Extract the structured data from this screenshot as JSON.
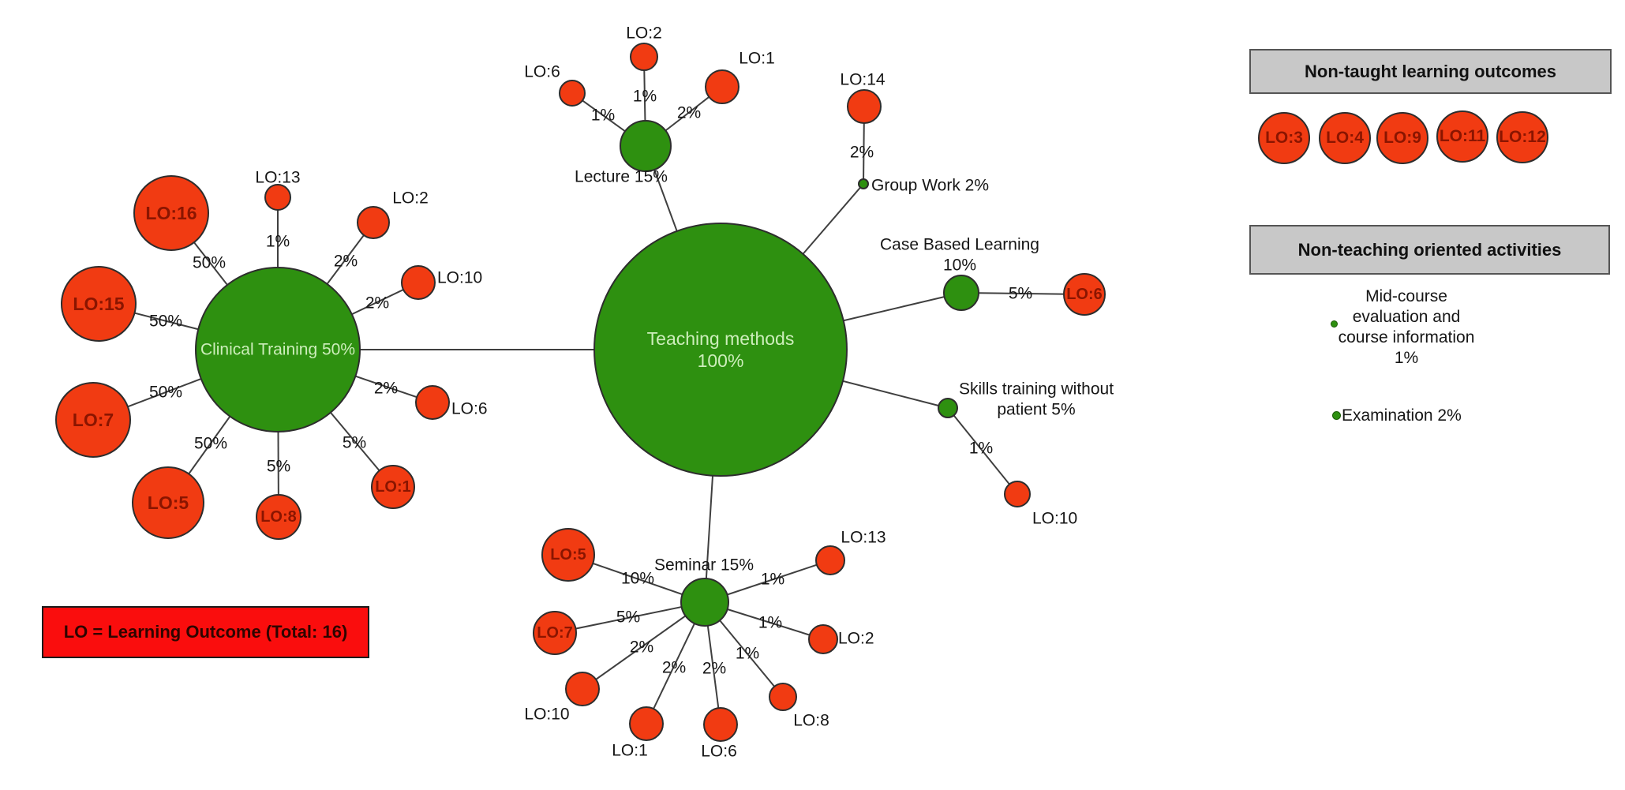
{
  "colors": {
    "activity_green": "#2e9010",
    "outcome_red": "#f13b12",
    "edge_line": "#3f3f3f",
    "hub_text_light": "#cdeebb",
    "outcome_text_dark": "#8a1500",
    "legend_header_bg": "#c8c8c8",
    "note_bg": "#fa0d0d",
    "note_text": "#2e0500"
  },
  "note_box": {
    "label": "LO = Learning Outcome (Total: 16)"
  },
  "legend_non_taught": {
    "title": "Non-taught learning outcomes",
    "items": [
      "LO:3",
      "LO:4",
      "LO:9",
      "LO:11",
      "LO:12"
    ]
  },
  "legend_non_teaching": {
    "title": "Non-teaching oriented activities",
    "item_mid_course": {
      "lines": [
        "Mid-course",
        "evaluation and",
        "course information",
        "1%"
      ]
    },
    "item_examination": {
      "label": "Examination 2%"
    }
  },
  "graph": {
    "hubs": [
      {
        "id": "teaching",
        "parent": null,
        "lines": [
          "Teaching methods",
          "100%"
        ]
      },
      {
        "id": "clinical",
        "parent": "teaching",
        "lines": [
          "Clinical Training 50%"
        ]
      },
      {
        "id": "lecture",
        "parent": "teaching",
        "lines": [
          "Lecture 15%"
        ]
      },
      {
        "id": "groupwork",
        "parent": "teaching",
        "lines": [
          "Group Work 2%"
        ]
      },
      {
        "id": "case",
        "parent": "teaching",
        "lines": [
          "Case Based Learning",
          "10%"
        ]
      },
      {
        "id": "skills",
        "parent": "teaching",
        "lines": [
          "Skills training without",
          "patient 5%"
        ]
      },
      {
        "id": "seminar",
        "parent": "teaching",
        "lines": [
          "Seminar 15%"
        ]
      }
    ],
    "outcomes": [
      {
        "hub": "clinical",
        "label": "LO:16",
        "pct": "50%"
      },
      {
        "hub": "clinical",
        "label": "LO:13",
        "pct": "1%"
      },
      {
        "hub": "clinical",
        "label": "LO:2",
        "pct": "2%"
      },
      {
        "hub": "clinical",
        "label": "LO:10",
        "pct": "2%"
      },
      {
        "hub": "clinical",
        "label": "LO:6",
        "pct": "2%"
      },
      {
        "hub": "clinical",
        "label": "LO:1",
        "pct": "5%"
      },
      {
        "hub": "clinical",
        "label": "LO:8",
        "pct": "5%"
      },
      {
        "hub": "clinical",
        "label": "LO:5",
        "pct": "50%"
      },
      {
        "hub": "clinical",
        "label": "LO:7",
        "pct": "50%"
      },
      {
        "hub": "clinical",
        "label": "LO:15",
        "pct": "50%"
      },
      {
        "hub": "lecture",
        "label": "LO:6",
        "pct": "1%"
      },
      {
        "hub": "lecture",
        "label": "LO:2",
        "pct": "1%"
      },
      {
        "hub": "lecture",
        "label": "LO:1",
        "pct": "2%"
      },
      {
        "hub": "groupwork",
        "label": "LO:14",
        "pct": "2%"
      },
      {
        "hub": "case",
        "label": "LO:6",
        "pct": "5%"
      },
      {
        "hub": "skills",
        "label": "LO:10",
        "pct": "1%"
      },
      {
        "hub": "seminar",
        "label": "LO:5",
        "pct": "10%"
      },
      {
        "hub": "seminar",
        "label": "LO:7",
        "pct": "5%"
      },
      {
        "hub": "seminar",
        "label": "LO:10",
        "pct": "2%"
      },
      {
        "hub": "seminar",
        "label": "LO:1",
        "pct": "2%"
      },
      {
        "hub": "seminar",
        "label": "LO:6",
        "pct": "2%"
      },
      {
        "hub": "seminar",
        "label": "LO:8",
        "pct": "1%"
      },
      {
        "hub": "seminar",
        "label": "LO:2",
        "pct": "1%"
      },
      {
        "hub": "seminar",
        "label": "LO:13",
        "pct": "1%"
      }
    ]
  }
}
